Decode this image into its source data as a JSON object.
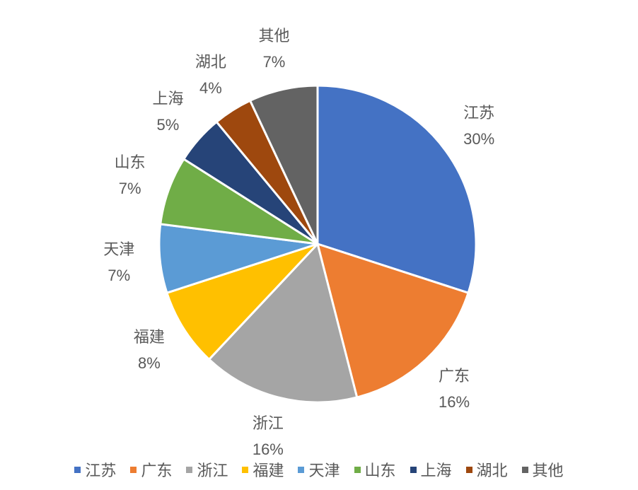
{
  "chart_data": {
    "type": "pie",
    "categories": [
      "江苏",
      "广东",
      "浙江",
      "福建",
      "天津",
      "山东",
      "上海",
      "湖北",
      "其他"
    ],
    "values": [
      30,
      16,
      16,
      8,
      7,
      7,
      5,
      4,
      7
    ],
    "value_labels": [
      "30%",
      "16%",
      "16%",
      "8%",
      "7%",
      "7%",
      "5%",
      "4%",
      "7%"
    ],
    "colors": [
      "#4472C4",
      "#ED7D31",
      "#A5A5A5",
      "#FFC000",
      "#5B9BD5",
      "#70AD47",
      "#264478",
      "#9E480E",
      "#636363"
    ],
    "legend_position": "bottom",
    "label_color": "#595959"
  }
}
